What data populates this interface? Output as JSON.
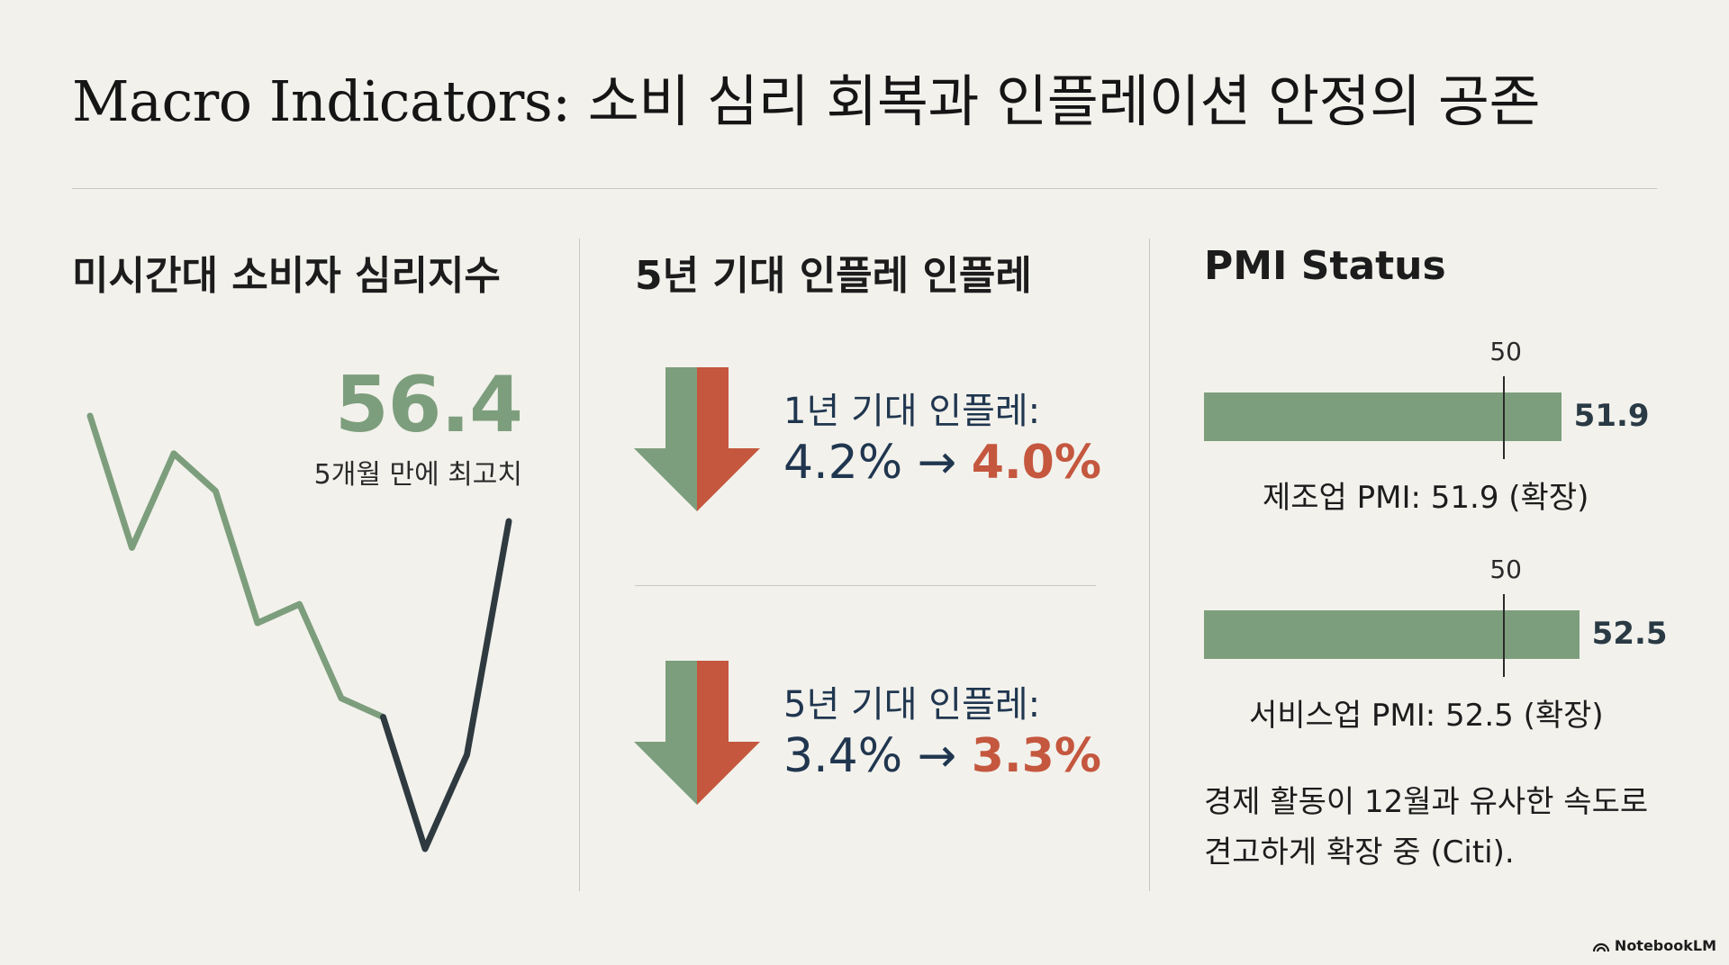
{
  "title": "Macro Indicators: 소비 심리 회복과 인플레이션 안정의 공존",
  "columns": {
    "sentiment": {
      "title": "미시간대 소비자 심리지수",
      "value": "56.4",
      "caption": "5개월 만에 최고치"
    },
    "inflation": {
      "title": "5년 기대 인플레 인플레",
      "items": [
        {
          "label": "1년 기대 인플레:",
          "from": "4.2%",
          "arrow": "→",
          "to": "4.0%"
        },
        {
          "label": "5년 기대 인플레:",
          "from": "3.4%",
          "arrow": "→",
          "to": "3.3%"
        }
      ]
    },
    "pmi": {
      "title": "PMI Status",
      "threshold_label": "50",
      "items": [
        {
          "value_label": "51.9",
          "caption": "제조업 PMI: 51.9 (확장)"
        },
        {
          "value_label": "52.5",
          "caption": "서비스업 PMI: 52.5 (확장)"
        }
      ],
      "note": "경제 활동이 12월과 유사한 속도로 견고하게 확장 중 (Citi)."
    }
  },
  "brand": "NotebookLM",
  "colors": {
    "green": "#7d9e7c",
    "red": "#c4573e",
    "navy": "#20364f",
    "dark_line": "#2f3a40",
    "background": "#f2f1ec"
  },
  "chart_data": [
    {
      "type": "line",
      "title": "미시간대 소비자 심리지수",
      "series": [
        {
          "values": [
            62,
            55,
            60,
            58,
            51,
            52,
            47,
            46,
            39,
            44,
            56.4
          ]
        }
      ],
      "highlight_latest": "56.4",
      "grid": false
    },
    {
      "type": "bar",
      "title": "PMI Status",
      "categories": [
        "제조업 PMI",
        "서비스업 PMI"
      ],
      "values": [
        51.9,
        52.5
      ],
      "reference_line": 50,
      "xlim": [
        40,
        55
      ],
      "grid": false
    }
  ]
}
